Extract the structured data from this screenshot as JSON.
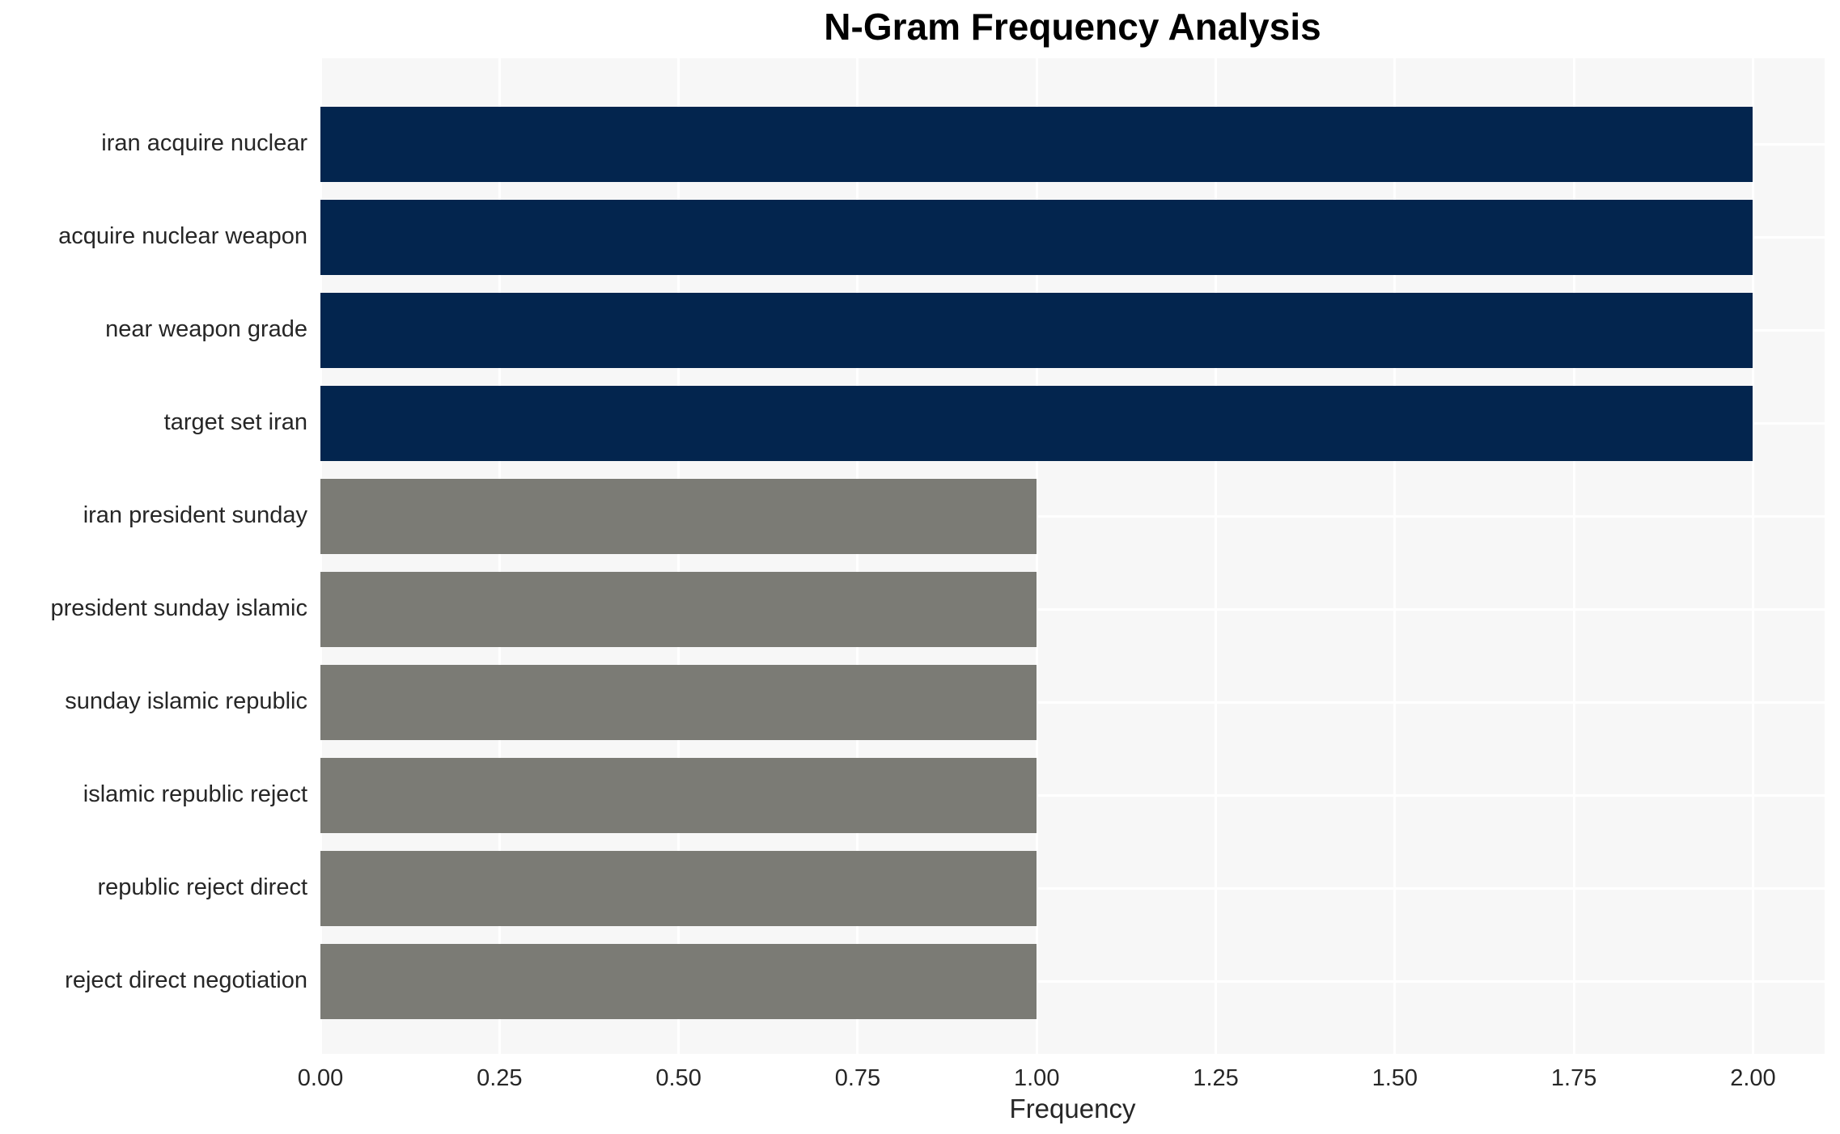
{
  "chart_data": {
    "type": "bar",
    "orientation": "horizontal",
    "title": "N-Gram Frequency Analysis",
    "xlabel": "Frequency",
    "ylabel": "",
    "categories": [
      "iran acquire nuclear",
      "acquire nuclear weapon",
      "near weapon grade",
      "target set iran",
      "iran president sunday",
      "president sunday islamic",
      "sunday islamic republic",
      "islamic republic reject",
      "republic reject direct",
      "reject direct negotiation"
    ],
    "values": [
      2,
      2,
      2,
      2,
      1,
      1,
      1,
      1,
      1,
      1
    ],
    "bar_colors": [
      "#03254e",
      "#03254e",
      "#03254e",
      "#03254e",
      "#7b7b75",
      "#7b7b75",
      "#7b7b75",
      "#7b7b75",
      "#7b7b75",
      "#7b7b75"
    ],
    "xlim": [
      0,
      2.1
    ],
    "xticks": [
      0.0,
      0.25,
      0.5,
      0.75,
      1.0,
      1.25,
      1.5,
      1.75,
      2.0
    ],
    "xtick_labels": [
      "0.00",
      "0.25",
      "0.50",
      "0.75",
      "1.00",
      "1.25",
      "1.50",
      "1.75",
      "2.00"
    ],
    "grid": true,
    "legend": false,
    "plot_background": "#f7f7f7",
    "grid_color": "#ffffff",
    "title_color": "#000000",
    "tick_label_color": "#262626"
  }
}
